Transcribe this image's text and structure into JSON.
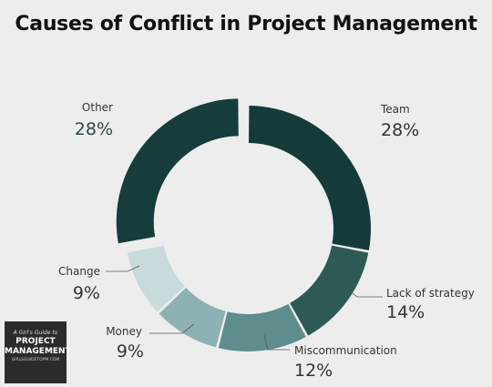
{
  "chart_data": {
    "type": "pie",
    "title": "Causes of Conflict in Project Management",
    "slices": [
      {
        "label": "Team",
        "value": 28,
        "value_label": "28%",
        "color": "#153a3a"
      },
      {
        "label": "Lack of strategy",
        "value": 14,
        "value_label": "14%",
        "color": "#2e5a55"
      },
      {
        "label": "Miscommunication",
        "value": 12,
        "value_label": "12%",
        "color": "#5f8c8c"
      },
      {
        "label": "Money",
        "value": 9,
        "value_label": "9%",
        "color": "#8db1b5"
      },
      {
        "label": "Change",
        "value": 9,
        "value_label": "9%",
        "color": "#c7dbdd"
      },
      {
        "label": "Other",
        "value": 28,
        "value_label": "28%",
        "color": "#173c3c",
        "exploded": true
      }
    ],
    "legend": "none"
  },
  "logo": {
    "line1": "A Girl's Guide to",
    "line2": "PROJECT",
    "line3": "MANAGEMENT",
    "line4": "GIRLSGUIDETOPM.COM"
  }
}
